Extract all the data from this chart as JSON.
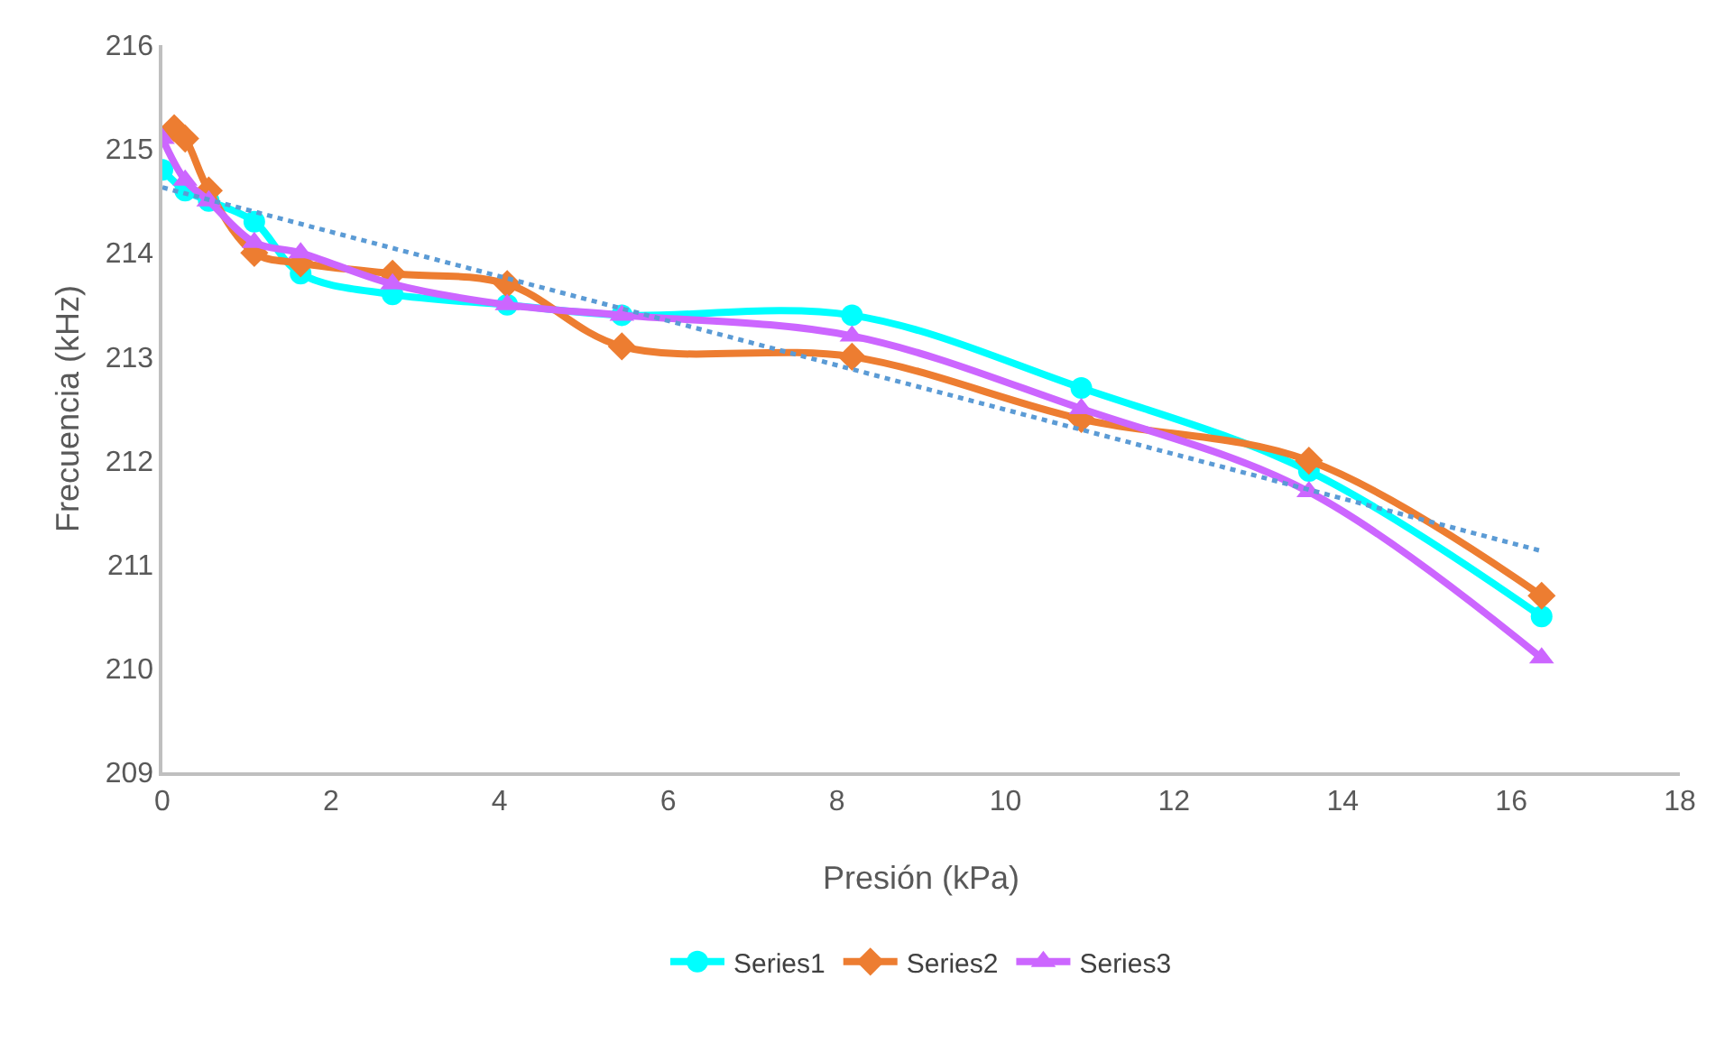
{
  "chart_data": {
    "type": "line",
    "xlabel": "Presión (kPa)",
    "ylabel": "Frecuencia (kHz)",
    "xlim": [
      0,
      18
    ],
    "xticks": [
      0,
      2,
      4,
      6,
      8,
      10,
      12,
      14,
      16,
      18
    ],
    "ylim": [
      209,
      216
    ],
    "yticks": [
      209,
      210,
      211,
      212,
      213,
      214,
      215,
      216
    ],
    "grid": false,
    "legend": "bottom",
    "series": [
      {
        "name": "Series1",
        "color": "#00ffff",
        "marker": "circle",
        "x": [
          0,
          0.27,
          0.55,
          1.09,
          1.64,
          2.73,
          4.09,
          5.45,
          8.18,
          10.9,
          13.6,
          16.36
        ],
        "values": [
          214.8,
          214.6,
          214.5,
          214.3,
          213.8,
          213.6,
          213.5,
          213.4,
          213.4,
          212.7,
          211.9,
          210.5
        ]
      },
      {
        "name": "Series2",
        "color": "#ed7d31",
        "marker": "diamond",
        "x": [
          0.14,
          0.27,
          0.55,
          1.09,
          1.64,
          2.73,
          4.09,
          5.45,
          8.18,
          10.9,
          13.6,
          16.36
        ],
        "values": [
          215.2,
          215.1,
          214.6,
          214.0,
          213.9,
          213.8,
          213.7,
          213.1,
          213.0,
          212.4,
          212.0,
          210.7
        ]
      },
      {
        "name": "Series3",
        "color": "#cc66ff",
        "marker": "triangle",
        "x": [
          0,
          0.27,
          0.55,
          1.09,
          1.64,
          2.73,
          4.09,
          5.45,
          8.18,
          10.9,
          13.6,
          16.36
        ],
        "values": [
          215.1,
          214.7,
          214.5,
          214.1,
          214.0,
          213.7,
          213.5,
          213.4,
          213.2,
          212.5,
          211.7,
          210.1
        ]
      },
      {
        "color": "#5b9bd5",
        "marker": "none",
        "line_style": "dotted",
        "x": [
          0,
          16.36
        ],
        "values": [
          214.63,
          211.13
        ]
      }
    ]
  }
}
